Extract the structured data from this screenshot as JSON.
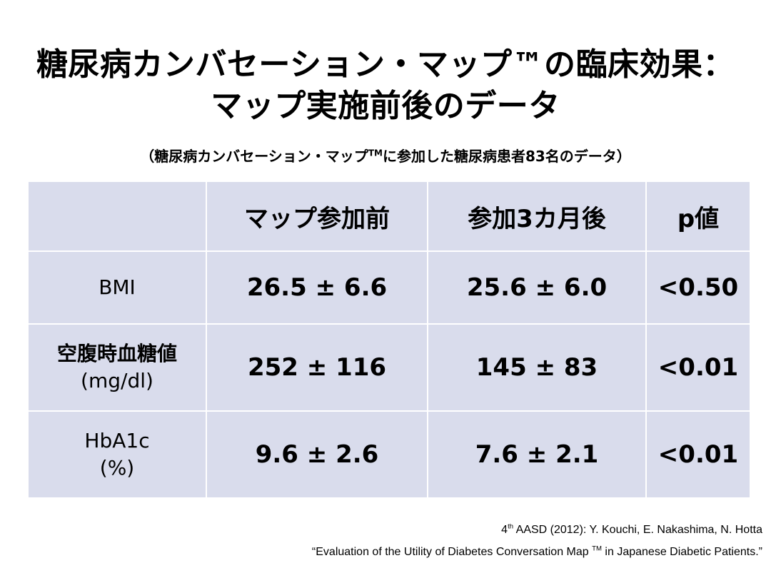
{
  "title": {
    "line1": "糖尿病カンバセーション・マップ™の臨床効果：",
    "line2": "マップ実施前後のデータ"
  },
  "subtitle": {
    "before": "（糖尿病カンバセーション・マップ",
    "tm": "TM",
    "after": "に参加した糖尿病患者83名のデータ）"
  },
  "table": {
    "headers": [
      "",
      "マップ参加前",
      "参加3カ月後",
      "p値"
    ],
    "rows": [
      {
        "label": "BMI",
        "unit": "",
        "before": "26.5 ± 6.6",
        "after": "25.6 ± 6.0",
        "p": "<0.50"
      },
      {
        "label": "空腹時血糖値",
        "unit": "(mg/dl)",
        "before": "252 ± 116",
        "after": "145 ± 83",
        "p": "<0.01"
      },
      {
        "label": "HbA1c",
        "unit": "(%)",
        "before": "9.6 ± 2.6",
        "after": "7.6 ± 2.1",
        "p": "<0.01"
      }
    ]
  },
  "citation": {
    "line1_num": "4",
    "line1_sup": "th",
    "line1_rest": " AASD (2012): Y. Kouchi, E. Nakashima, N. Hotta",
    "line2_before": "“Evaluation of the Utility of Diabetes Conversation Map ",
    "line2_tm": "TM",
    "line2_after": " in Japanese Diabetic Patients.”"
  }
}
